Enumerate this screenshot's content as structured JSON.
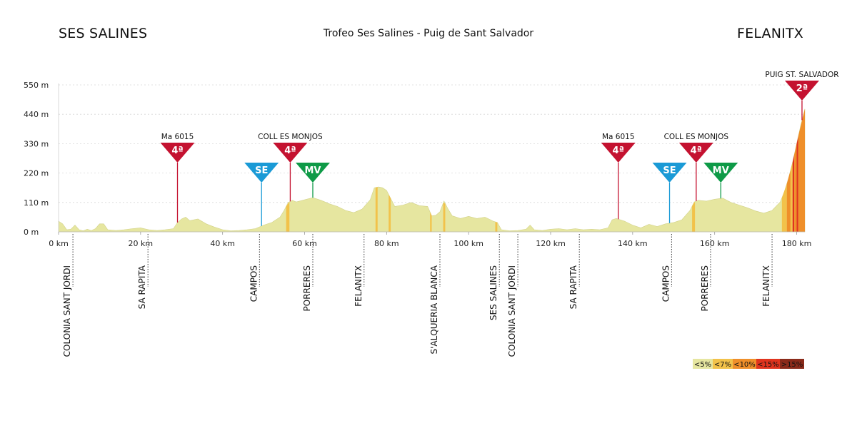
{
  "header": {
    "start": "SES SALINES",
    "title": "Trofeo Ses Salines - Puig de Sant Salvador",
    "finish": "FELANITX"
  },
  "chart_data": {
    "type": "area",
    "title": "Trofeo Ses Salines - Puig de Sant Salvador",
    "x_unit": "km",
    "y_unit": "m",
    "xlim": [
      0,
      182
    ],
    "ylim": [
      0,
      550
    ],
    "x_ticks": [
      0,
      20,
      40,
      60,
      80,
      100,
      120,
      140,
      160,
      180
    ],
    "x_tick_labels": [
      "0 km",
      "20 km",
      "40 km",
      "60 km",
      "80 km",
      "100 km",
      "120 km",
      "140 km",
      "160 km",
      "180 km"
    ],
    "y_ticks": [
      0,
      110,
      220,
      330,
      440,
      550
    ],
    "y_tick_labels": [
      "0 m",
      "110 m",
      "220 m",
      "330 m",
      "440 m",
      "550 m"
    ],
    "grid": true,
    "profile": [
      [
        0,
        40
      ],
      [
        1,
        30
      ],
      [
        2,
        8
      ],
      [
        3,
        10
      ],
      [
        4,
        25
      ],
      [
        5,
        8
      ],
      [
        6,
        4
      ],
      [
        7,
        10
      ],
      [
        8,
        5
      ],
      [
        9,
        12
      ],
      [
        10,
        30
      ],
      [
        11,
        30
      ],
      [
        12,
        8
      ],
      [
        14,
        5
      ],
      [
        16,
        8
      ],
      [
        18,
        12
      ],
      [
        20,
        15
      ],
      [
        22,
        8
      ],
      [
        24,
        5
      ],
      [
        26,
        8
      ],
      [
        28,
        12
      ],
      [
        29,
        35
      ],
      [
        30,
        48
      ],
      [
        31,
        55
      ],
      [
        32,
        42
      ],
      [
        34,
        48
      ],
      [
        36,
        30
      ],
      [
        38,
        18
      ],
      [
        40,
        8
      ],
      [
        42,
        4
      ],
      [
        44,
        5
      ],
      [
        46,
        8
      ],
      [
        48,
        12
      ],
      [
        50,
        25
      ],
      [
        52,
        35
      ],
      [
        54,
        55
      ],
      [
        55,
        80
      ],
      [
        56,
        110
      ],
      [
        57,
        118
      ],
      [
        58,
        112
      ],
      [
        60,
        120
      ],
      [
        62,
        128
      ],
      [
        64,
        118
      ],
      [
        66,
        105
      ],
      [
        68,
        95
      ],
      [
        70,
        80
      ],
      [
        72,
        72
      ],
      [
        74,
        85
      ],
      [
        76,
        120
      ],
      [
        77,
        165
      ],
      [
        78,
        168
      ],
      [
        79,
        165
      ],
      [
        80,
        155
      ],
      [
        81,
        125
      ],
      [
        82,
        95
      ],
      [
        84,
        100
      ],
      [
        86,
        110
      ],
      [
        88,
        98
      ],
      [
        90,
        95
      ],
      [
        91,
        60
      ],
      [
        92,
        62
      ],
      [
        93,
        75
      ],
      [
        94,
        115
      ],
      [
        95,
        85
      ],
      [
        96,
        60
      ],
      [
        98,
        50
      ],
      [
        100,
        58
      ],
      [
        102,
        50
      ],
      [
        104,
        55
      ],
      [
        106,
        40
      ],
      [
        107,
        35
      ],
      [
        108,
        8
      ],
      [
        110,
        4
      ],
      [
        112,
        5
      ],
      [
        114,
        10
      ],
      [
        115,
        25
      ],
      [
        116,
        8
      ],
      [
        118,
        5
      ],
      [
        120,
        10
      ],
      [
        122,
        12
      ],
      [
        124,
        8
      ],
      [
        126,
        12
      ],
      [
        128,
        8
      ],
      [
        130,
        10
      ],
      [
        132,
        8
      ],
      [
        134,
        15
      ],
      [
        135,
        45
      ],
      [
        136,
        50
      ],
      [
        138,
        40
      ],
      [
        140,
        25
      ],
      [
        142,
        15
      ],
      [
        144,
        28
      ],
      [
        146,
        20
      ],
      [
        148,
        30
      ],
      [
        150,
        35
      ],
      [
        152,
        45
      ],
      [
        154,
        80
      ],
      [
        155,
        112
      ],
      [
        156,
        118
      ],
      [
        158,
        115
      ],
      [
        160,
        122
      ],
      [
        162,
        126
      ],
      [
        164,
        110
      ],
      [
        166,
        100
      ],
      [
        168,
        90
      ],
      [
        170,
        78
      ],
      [
        172,
        70
      ],
      [
        174,
        80
      ],
      [
        176,
        112
      ],
      [
        177,
        150
      ],
      [
        178,
        200
      ],
      [
        179,
        260
      ],
      [
        180,
        330
      ],
      [
        181,
        400
      ],
      [
        182,
        460
      ]
    ],
    "steep_sections": [
      {
        "from": 55.5,
        "to": 56.3,
        "grade": "<7%"
      },
      {
        "from": 77.3,
        "to": 77.8,
        "grade": "<7%"
      },
      {
        "from": 80.5,
        "to": 81.0,
        "grade": "<7%"
      },
      {
        "from": 90.6,
        "to": 91.0,
        "grade": "<7%"
      },
      {
        "from": 93.8,
        "to": 94.3,
        "grade": "<7%"
      },
      {
        "from": 106.5,
        "to": 107.0,
        "grade": "<7%"
      },
      {
        "from": 154.5,
        "to": 155.2,
        "grade": "<7%"
      },
      {
        "from": 176.4,
        "to": 177.6,
        "grade": "<7%"
      },
      {
        "from": 177.6,
        "to": 178.5,
        "grade": "<10%"
      },
      {
        "from": 178.5,
        "to": 179.0,
        "grade": "<7%"
      },
      {
        "from": 179.0,
        "to": 179.4,
        "grade": "<15%"
      },
      {
        "from": 179.4,
        "to": 180.0,
        "grade": "<10%"
      },
      {
        "from": 180.0,
        "to": 180.4,
        "grade": "<15%"
      },
      {
        "from": 180.4,
        "to": 182.0,
        "grade": "<10%"
      }
    ],
    "climbs": [
      {
        "label": "4ª",
        "name": "Ma 6015",
        "km": 29,
        "type": "cat4"
      },
      {
        "label": "4ª",
        "name": "COLL ES MONJOS",
        "km": 56.5,
        "type": "cat4"
      },
      {
        "label": "4ª",
        "name": "Ma 6015",
        "km": 136.5,
        "type": "cat4"
      },
      {
        "label": "4ª",
        "name": "COLL ES MONJOS",
        "km": 155.5,
        "type": "cat4"
      },
      {
        "label": "2ª",
        "name": "PUIG ST. SALVADOR",
        "km": 181.3,
        "type": "cat2"
      }
    ],
    "sprints": [
      {
        "label": "SE",
        "km": 49.5,
        "type": "sprint"
      },
      {
        "label": "MV",
        "km": 62,
        "type": "mv"
      },
      {
        "label": "SE",
        "km": 149,
        "type": "sprint"
      },
      {
        "label": "MV",
        "km": 161.5,
        "type": "mv"
      }
    ],
    "towns": [
      {
        "name": "COLONIA SANT JORDI",
        "km": 3.5,
        "length": "long"
      },
      {
        "name": "SA RAPITA",
        "km": 21.8,
        "length": "short"
      },
      {
        "name": "CAMPOS",
        "km": 49,
        "length": "short"
      },
      {
        "name": "PORRERES",
        "km": 62,
        "length": "short"
      },
      {
        "name": "FELANITX",
        "km": 74.5,
        "length": "short"
      },
      {
        "name": "S'ALQUERIA BLANCA",
        "km": 93,
        "length": "long"
      },
      {
        "name": "SES SALINES",
        "km": 107.5,
        "length": "medium"
      },
      {
        "name": "COLONIA SANT JORDI",
        "km": 112,
        "length": "long"
      },
      {
        "name": "SA RAPITA",
        "km": 127,
        "length": "short"
      },
      {
        "name": "CAMPOS",
        "km": 149.5,
        "length": "short"
      },
      {
        "name": "PORRERES",
        "km": 159,
        "length": "short"
      },
      {
        "name": "FELANITX",
        "km": 174,
        "length": "short"
      }
    ],
    "legend": [
      {
        "label": "<5%",
        "color": "#e6e6a0"
      },
      {
        "label": "<7%",
        "color": "#f2c24a"
      },
      {
        "label": "<10%",
        "color": "#ef8f2a"
      },
      {
        "label": "<15%",
        "color": "#e0341e"
      },
      {
        "label": ">15%",
        "color": "#8a2a1a"
      }
    ],
    "colors": {
      "cat_badge": "#c41230",
      "sprint_badge": "#1a9ad6",
      "mv_badge": "#0e9a47"
    }
  }
}
